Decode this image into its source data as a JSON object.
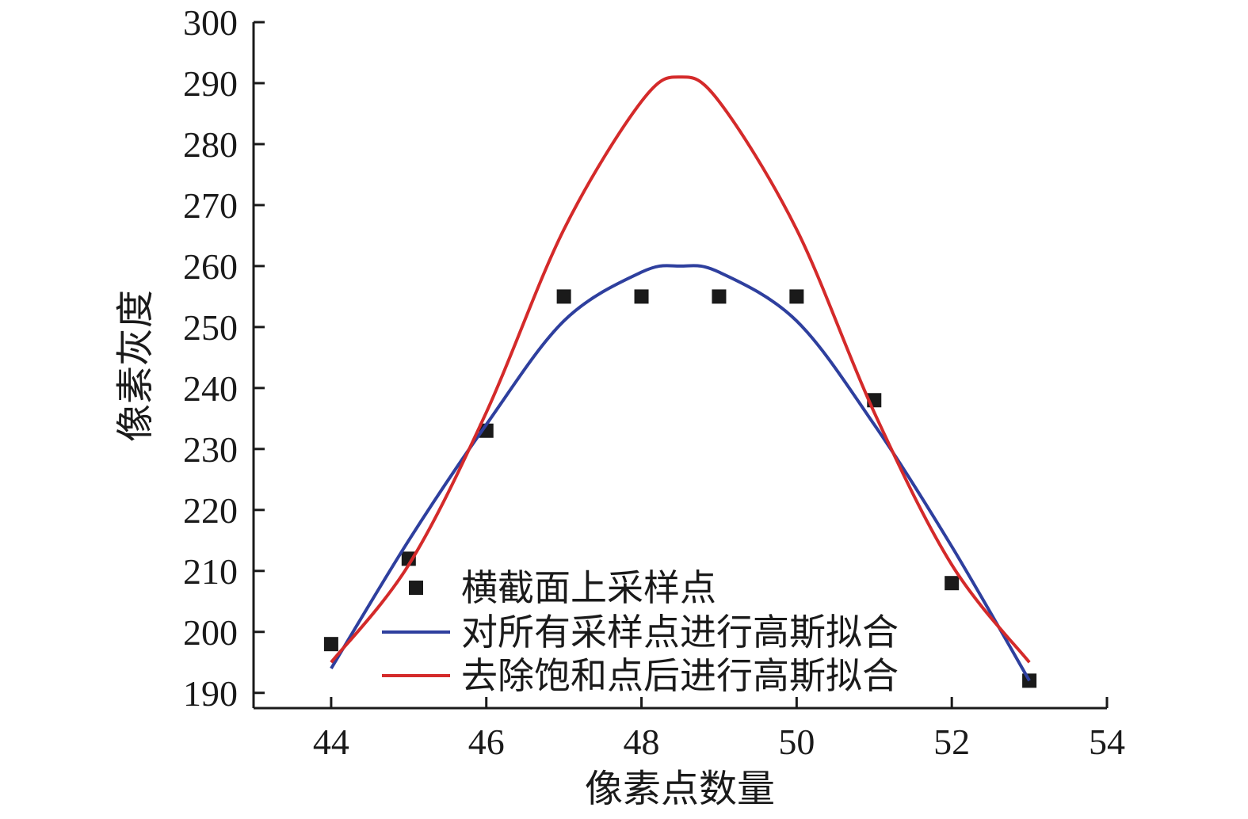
{
  "chart_data": {
    "type": "scatter",
    "title": "",
    "xlabel": "像素点数量",
    "ylabel": "像素灰度",
    "xlim": [
      43,
      54
    ],
    "ylim": [
      187.5,
      300
    ],
    "x_ticks": [
      44,
      46,
      48,
      50,
      52,
      54
    ],
    "y_ticks": [
      190,
      200,
      210,
      220,
      230,
      240,
      250,
      260,
      270,
      280,
      290,
      300
    ],
    "legend_position": "bottom-center",
    "series": [
      {
        "name": "横截面上采样点",
        "kind": "scatter",
        "color": "#1a1a1a",
        "points": [
          {
            "x": 44,
            "y": 198
          },
          {
            "x": 45,
            "y": 212
          },
          {
            "x": 46,
            "y": 233
          },
          {
            "x": 47,
            "y": 255
          },
          {
            "x": 48,
            "y": 255
          },
          {
            "x": 49,
            "y": 255
          },
          {
            "x": 50,
            "y": 255
          },
          {
            "x": 51,
            "y": 238
          },
          {
            "x": 52,
            "y": 208
          },
          {
            "x": 53,
            "y": 192
          }
        ]
      },
      {
        "name": "对所有采样点进行高斯拟合",
        "kind": "line",
        "color": "#2e3f9e",
        "x": [
          44,
          45,
          46,
          47,
          48,
          48.5,
          49,
          50,
          51,
          52,
          53
        ],
        "y": [
          194,
          215,
          234,
          251,
          259,
          260,
          259,
          251,
          234,
          214,
          192
        ]
      },
      {
        "name": "去除饱和点后进行高斯拟合",
        "kind": "line",
        "color": "#d42a2a",
        "x": [
          44,
          45,
          46,
          47,
          48,
          48.5,
          49,
          50,
          51,
          52,
          53
        ],
        "y": [
          195,
          211,
          236,
          266,
          287,
          291,
          287,
          266,
          236,
          211,
          195
        ]
      }
    ]
  }
}
